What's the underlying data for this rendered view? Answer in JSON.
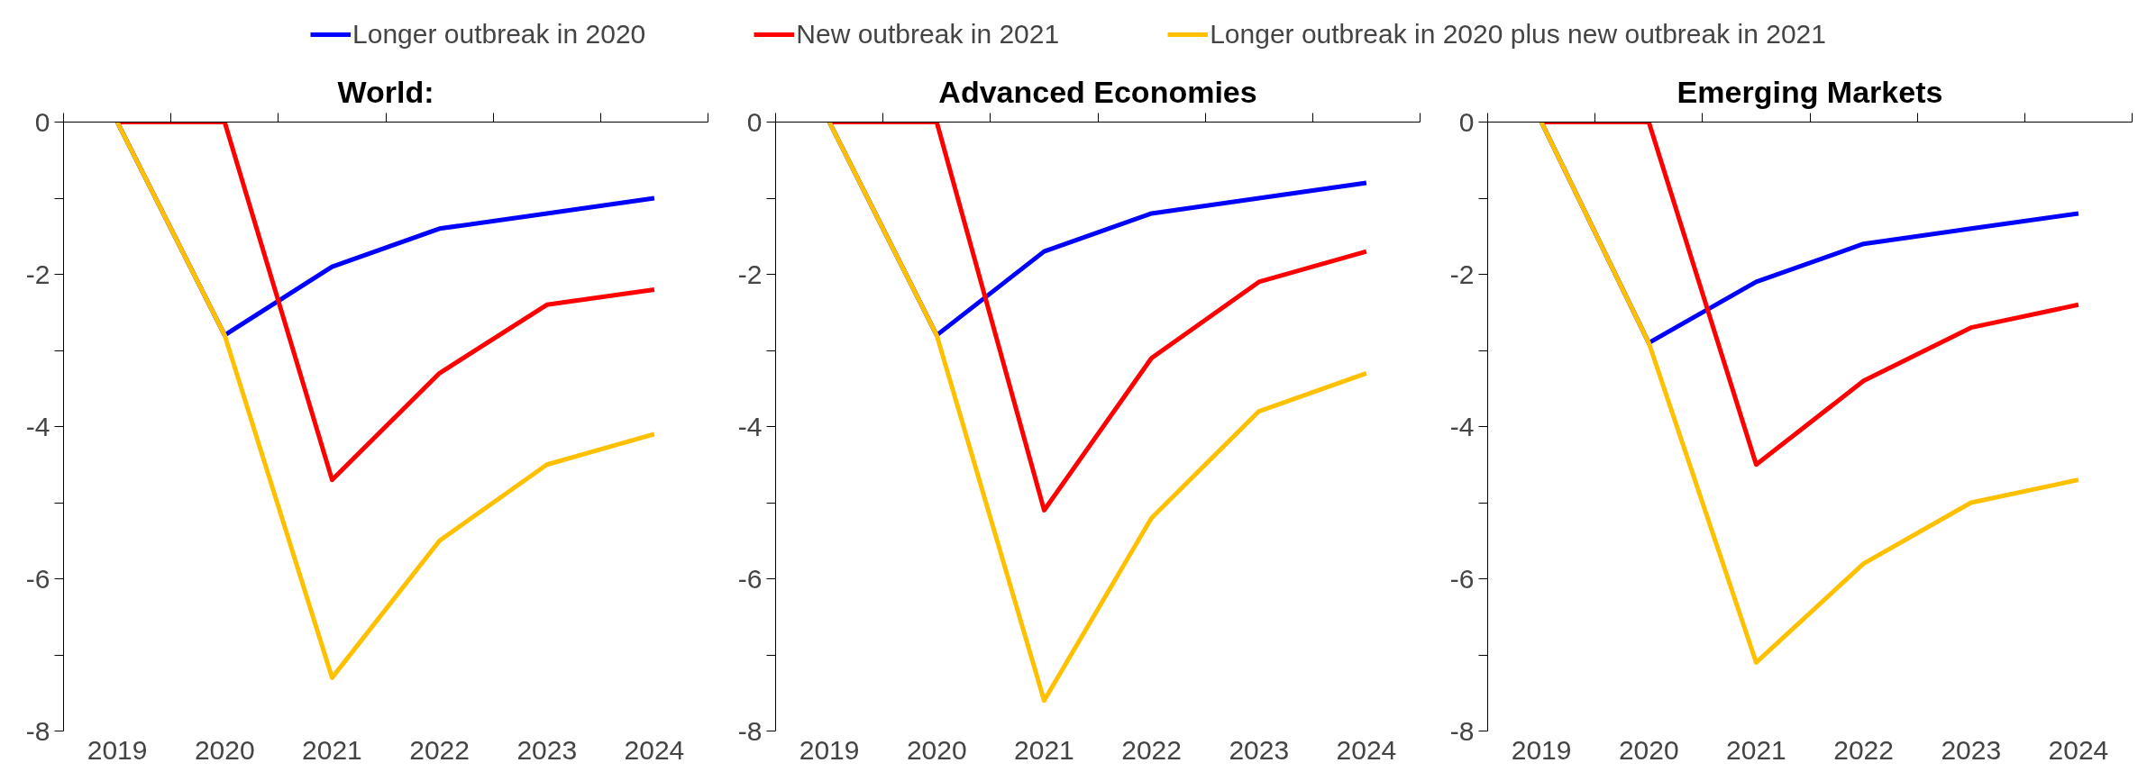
{
  "chart_data": [
    {
      "type": "line",
      "title": "World:",
      "categories": [
        "2019",
        "2020",
        "2021",
        "2022",
        "2023",
        "2024"
      ],
      "ylim": [
        -8,
        0
      ],
      "yticks": [
        0,
        {
          "value": -1,
          "label": null
        },
        -2,
        {
          "value": -3,
          "label": null
        },
        -4,
        {
          "value": -5,
          "label": null
        },
        -6,
        {
          "value": -7,
          "label": null
        },
        -8
      ],
      "grid": false,
      "legend": "top",
      "series": [
        {
          "name": "Longer outbreak in 2020",
          "color": "#0000ff",
          "values": [
            0,
            -2.8,
            -1.9,
            -1.4,
            -1.2,
            -1.0
          ]
        },
        {
          "name": "New outbreak in 2021",
          "color": "#ff0000",
          "values": [
            0,
            0,
            -4.7,
            -3.3,
            -2.4,
            -2.2
          ]
        },
        {
          "name": "Longer outbreak in 2020 plus new outbreak in 2021",
          "color": "#ffc000",
          "values": [
            0,
            -2.8,
            -7.3,
            -5.5,
            -4.5,
            -4.1
          ]
        }
      ]
    },
    {
      "type": "line",
      "title": "Advanced Economies",
      "categories": [
        "2019",
        "2020",
        "2021",
        "2022",
        "2023",
        "2024"
      ],
      "ylim": [
        -8,
        0
      ],
      "yticks": [
        0,
        {
          "value": -1,
          "label": null
        },
        -2,
        {
          "value": -3,
          "label": null
        },
        -4,
        {
          "value": -5,
          "label": null
        },
        -6,
        {
          "value": -7,
          "label": null
        },
        -8
      ],
      "grid": false,
      "series": [
        {
          "color": "#0000ff",
          "values": [
            0,
            -2.8,
            -1.7,
            -1.2,
            -1.0,
            -0.8
          ]
        },
        {
          "color": "#ff0000",
          "values": [
            0,
            0,
            -5.1,
            -3.1,
            -2.1,
            -1.7
          ]
        },
        {
          "color": "#ffc000",
          "values": [
            0,
            -2.8,
            -7.6,
            -5.2,
            -3.8,
            -3.3
          ]
        }
      ]
    },
    {
      "type": "line",
      "title": "Emerging Markets",
      "categories": [
        "2019",
        "2020",
        "2021",
        "2022",
        "2023",
        "2024"
      ],
      "ylim": [
        -8,
        0
      ],
      "yticks": [
        0,
        {
          "value": -1,
          "label": null
        },
        -2,
        {
          "value": -3,
          "label": null
        },
        -4,
        {
          "value": -5,
          "label": null
        },
        -6,
        {
          "value": -7,
          "label": null
        },
        -8
      ],
      "grid": false,
      "series": [
        {
          "color": "#0000ff",
          "values": [
            0,
            -2.9,
            -2.1,
            -1.6,
            -1.4,
            -1.2
          ]
        },
        {
          "color": "#ff0000",
          "values": [
            0,
            0,
            -4.5,
            -3.4,
            -2.7,
            -2.4
          ]
        },
        {
          "color": "#ffc000",
          "values": [
            0,
            -2.9,
            -7.1,
            -5.8,
            -5.0,
            -4.7
          ]
        }
      ]
    }
  ]
}
